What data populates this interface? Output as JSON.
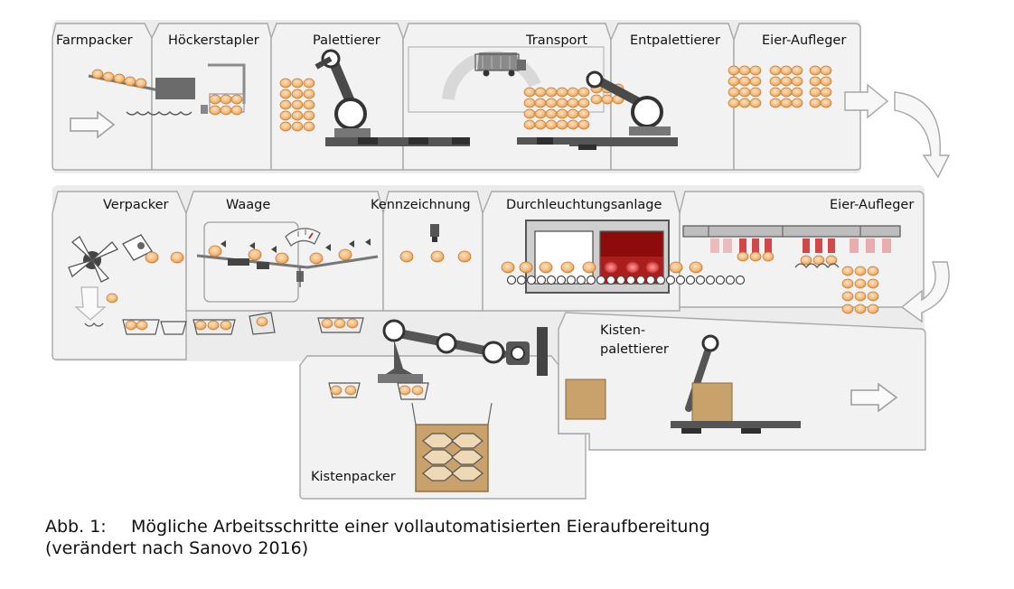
{
  "stations": {
    "farmpacker": "Farmpacker",
    "hoeckerstapler": "Höckerstapler",
    "palettierer": "Palettierer",
    "transport": "Transport",
    "entpalettierer": "Entpalettierer",
    "eier_aufleger_1": "Eier-Aufleger",
    "verpacker": "Verpacker",
    "waage": "Waage",
    "kennzeichnung": "Kennzeichnung",
    "durchleuchtungsanlage": "Durchleuchtungsanlage",
    "eier_aufleger_2": "Eier-Aufleger",
    "kisten_1": "Kisten-",
    "kisten_2": "palettierer",
    "kistenpacker": "Kistenpacker"
  },
  "caption": {
    "number": "Abb. 1:",
    "text": "Mögliche Arbeitsschritte einer vollautomatisierten Eieraufbereitung",
    "source": "(verändert nach Sanovo 2016)"
  },
  "colors": {
    "panel": "#f0f0f0",
    "panel_border": "#a8a8a8",
    "background": "#e9e9e9",
    "egg": "#f6c48a",
    "egg_edge": "#c98a44",
    "machine": "#6b6b6b",
    "box": "#c9a16a",
    "candling_red": "#8e0b0b"
  },
  "icons": [
    "arrow-right-icon",
    "curved-arrow-icon",
    "truck-icon",
    "robot-arm-icon",
    "scale-gauge-icon",
    "printer-icon",
    "stamp-icon"
  ]
}
